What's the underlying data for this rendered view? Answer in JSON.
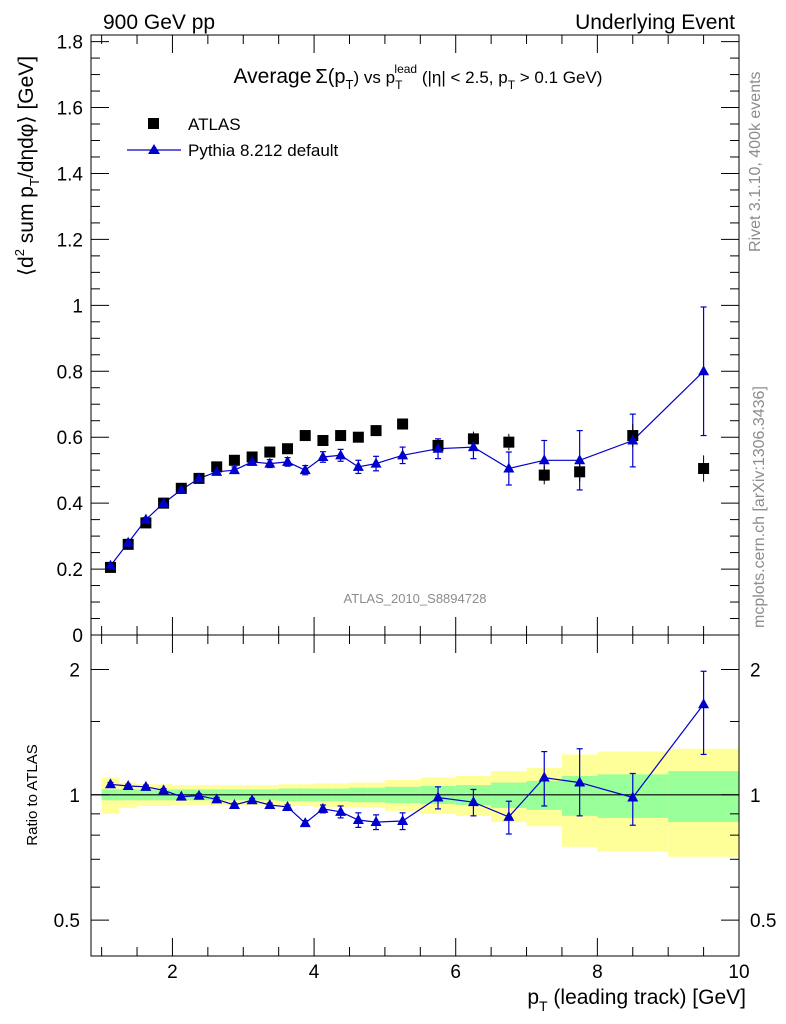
{
  "header": {
    "left": "900 GeV pp",
    "right": "Underlying Event"
  },
  "side_labels": {
    "rivet": "Rivet 3.1.10,  400k events",
    "mcplots": "mcplots.cern.ch [arXiv:1306.3436]"
  },
  "analysis_tag": "ATLAS_2010_S8894728",
  "colors": {
    "data": "#000000",
    "mc": "#0000cc",
    "band_outer": "#ffff99",
    "band_inner": "#99ff99",
    "reference_line": "#000000"
  },
  "chart_data": [
    {
      "type": "scatter",
      "title_parts": {
        "average": "Average",
        "sigma": "Σ(p",
        "sigma_sub": "T",
        "sigma_close": ")",
        "vs": " vs p",
        "lead_sub": "T",
        "lead_sup": "lead",
        "cuts1": " (|η| < 2.5, p",
        "cuts_sub": "T",
        "cuts2": " > 0.1 GeV)"
      },
      "ylabel_parts": {
        "open": "⟨d",
        "sup2": "2",
        "mid": " sum p",
        "sub": "T",
        "close": "/dηdφ⟩ [GeV]"
      },
      "xlim": [
        0.85,
        10.0
      ],
      "ylim": [
        0,
        1.82
      ],
      "y_ticks": [
        {
          "v": 0,
          "label": "0"
        },
        {
          "v": 0.2,
          "label": "0.2"
        },
        {
          "v": 0.4,
          "label": "0.4"
        },
        {
          "v": 0.6,
          "label": "0.6"
        },
        {
          "v": 0.8,
          "label": "0.8"
        },
        {
          "v": 1.0,
          "label": "1"
        },
        {
          "v": 1.2,
          "label": "1.2"
        },
        {
          "v": 1.4,
          "label": "1.4"
        },
        {
          "v": 1.6,
          "label": "1.6"
        },
        {
          "v": 1.8,
          "label": "1.8"
        }
      ],
      "legend_position": "top-left",
      "series": [
        {
          "name": "ATLAS",
          "marker": "square",
          "x": [
            1.125,
            1.375,
            1.625,
            1.875,
            2.125,
            2.375,
            2.625,
            2.875,
            3.125,
            3.375,
            3.625,
            3.875,
            4.125,
            4.375,
            4.625,
            4.875,
            5.25,
            5.75,
            6.25,
            6.75,
            7.25,
            7.75,
            8.5,
            9.5
          ],
          "y": [
            0.205,
            0.275,
            0.34,
            0.4,
            0.445,
            0.475,
            0.51,
            0.53,
            0.54,
            0.555,
            0.565,
            0.605,
            0.59,
            0.605,
            0.6,
            0.62,
            0.64,
            0.575,
            0.595,
            0.585,
            0.485,
            0.495,
            0.605,
            0.505
          ],
          "err": [
            0.005,
            0.005,
            0.006,
            0.007,
            0.008,
            0.008,
            0.009,
            0.01,
            0.01,
            0.011,
            0.012,
            0.013,
            0.013,
            0.014,
            0.015,
            0.016,
            0.017,
            0.02,
            0.022,
            0.025,
            0.028,
            0.03,
            0.035,
            0.04
          ]
        },
        {
          "name": "Pythia 8.212 default",
          "marker": "triangle",
          "x": [
            1.125,
            1.375,
            1.625,
            1.875,
            2.125,
            2.375,
            2.625,
            2.875,
            3.125,
            3.375,
            3.625,
            3.875,
            4.125,
            4.375,
            4.625,
            4.875,
            5.25,
            5.75,
            6.25,
            6.75,
            7.25,
            7.75,
            8.5,
            9.5
          ],
          "y": [
            0.21,
            0.28,
            0.35,
            0.4,
            0.44,
            0.475,
            0.495,
            0.5,
            0.525,
            0.52,
            0.525,
            0.5,
            0.54,
            0.545,
            0.51,
            0.52,
            0.545,
            0.565,
            0.57,
            0.505,
            0.53,
            0.53,
            0.59,
            0.8
          ],
          "err": [
            0.005,
            0.006,
            0.006,
            0.007,
            0.008,
            0.008,
            0.009,
            0.01,
            0.01,
            0.012,
            0.013,
            0.014,
            0.016,
            0.018,
            0.02,
            0.022,
            0.025,
            0.03,
            0.035,
            0.05,
            0.06,
            0.09,
            0.08,
            0.195
          ]
        }
      ]
    },
    {
      "type": "line",
      "ylabel": "Ratio to ATLAS",
      "xlabel_parts": {
        "p": "p",
        "sub": "T",
        "rest": " (leading track) [GeV]"
      },
      "log_y": true,
      "xlim": [
        0.85,
        10.0
      ],
      "ylim": [
        0.41,
        2.42
      ],
      "x_ticks": [
        {
          "v": 2,
          "label": "2"
        },
        {
          "v": 4,
          "label": "4"
        },
        {
          "v": 6,
          "label": "6"
        },
        {
          "v": 8,
          "label": "8"
        },
        {
          "v": 10,
          "label": "10"
        }
      ],
      "y_ticks": [
        {
          "v": 0.5,
          "label": "0.5"
        },
        {
          "v": 1,
          "label": "1"
        },
        {
          "v": 2,
          "label": "2"
        }
      ],
      "bins": [
        {
          "lo": 1.0,
          "hi": 1.25,
          "inner": 0.03,
          "outer": 0.1
        },
        {
          "lo": 1.25,
          "hi": 1.5,
          "inner": 0.03,
          "outer": 0.07
        },
        {
          "lo": 1.5,
          "hi": 1.75,
          "inner": 0.03,
          "outer": 0.06
        },
        {
          "lo": 1.75,
          "hi": 2.0,
          "inner": 0.03,
          "outer": 0.06
        },
        {
          "lo": 2.0,
          "hi": 2.25,
          "inner": 0.03,
          "outer": 0.055
        },
        {
          "lo": 2.25,
          "hi": 2.5,
          "inner": 0.03,
          "outer": 0.055
        },
        {
          "lo": 2.5,
          "hi": 2.75,
          "inner": 0.03,
          "outer": 0.055
        },
        {
          "lo": 2.75,
          "hi": 3.0,
          "inner": 0.03,
          "outer": 0.055
        },
        {
          "lo": 3.0,
          "hi": 3.25,
          "inner": 0.03,
          "outer": 0.055
        },
        {
          "lo": 3.25,
          "hi": 3.5,
          "inner": 0.03,
          "outer": 0.055
        },
        {
          "lo": 3.5,
          "hi": 3.75,
          "inner": 0.035,
          "outer": 0.06
        },
        {
          "lo": 3.75,
          "hi": 4.0,
          "inner": 0.035,
          "outer": 0.06
        },
        {
          "lo": 4.0,
          "hi": 4.25,
          "inner": 0.035,
          "outer": 0.065
        },
        {
          "lo": 4.25,
          "hi": 4.5,
          "inner": 0.035,
          "outer": 0.065
        },
        {
          "lo": 4.5,
          "hi": 4.75,
          "inner": 0.04,
          "outer": 0.07
        },
        {
          "lo": 4.75,
          "hi": 5.0,
          "inner": 0.04,
          "outer": 0.07
        },
        {
          "lo": 5.0,
          "hi": 5.5,
          "inner": 0.045,
          "outer": 0.085
        },
        {
          "lo": 5.5,
          "hi": 6.0,
          "inner": 0.05,
          "outer": 0.1
        },
        {
          "lo": 6.0,
          "hi": 6.5,
          "inner": 0.055,
          "outer": 0.11
        },
        {
          "lo": 6.5,
          "hi": 7.0,
          "inner": 0.07,
          "outer": 0.14
        },
        {
          "lo": 7.0,
          "hi": 7.5,
          "inner": 0.08,
          "outer": 0.16
        },
        {
          "lo": 7.5,
          "hi": 8.0,
          "inner": 0.11,
          "outer": 0.25
        },
        {
          "lo": 8.0,
          "hi": 9.0,
          "inner": 0.12,
          "outer": 0.27
        },
        {
          "lo": 9.0,
          "hi": 10.0,
          "inner": 0.14,
          "outer": 0.29
        }
      ],
      "series": [
        {
          "name": "Pythia 8.212 default",
          "x": [
            1.125,
            1.375,
            1.625,
            1.875,
            2.125,
            2.375,
            2.625,
            2.875,
            3.125,
            3.375,
            3.625,
            3.875,
            4.125,
            4.375,
            4.625,
            4.875,
            5.25,
            5.75,
            6.25,
            6.75,
            7.25,
            7.75,
            8.5,
            9.5
          ],
          "y": [
            1.06,
            1.05,
            1.045,
            1.025,
            0.99,
            0.995,
            0.975,
            0.945,
            0.97,
            0.945,
            0.935,
            0.855,
            0.925,
            0.91,
            0.87,
            0.86,
            0.865,
            0.985,
            0.96,
            0.885,
            1.1,
            1.07,
            0.985,
            1.65
          ],
          "err_lo": [
            0.01,
            0.01,
            0.01,
            0.01,
            0.01,
            0.01,
            0.01,
            0.01,
            0.01,
            0.01,
            0.01,
            0.012,
            0.02,
            0.03,
            0.035,
            0.035,
            0.04,
            0.06,
            0.07,
            0.08,
            0.16,
            0.18,
            0.14,
            0.4
          ],
          "err_hi": [
            0.01,
            0.01,
            0.01,
            0.01,
            0.01,
            0.01,
            0.01,
            0.01,
            0.01,
            0.01,
            0.01,
            0.012,
            0.02,
            0.03,
            0.035,
            0.035,
            0.04,
            0.06,
            0.07,
            0.08,
            0.17,
            0.22,
            0.14,
            0.33
          ]
        }
      ]
    }
  ]
}
